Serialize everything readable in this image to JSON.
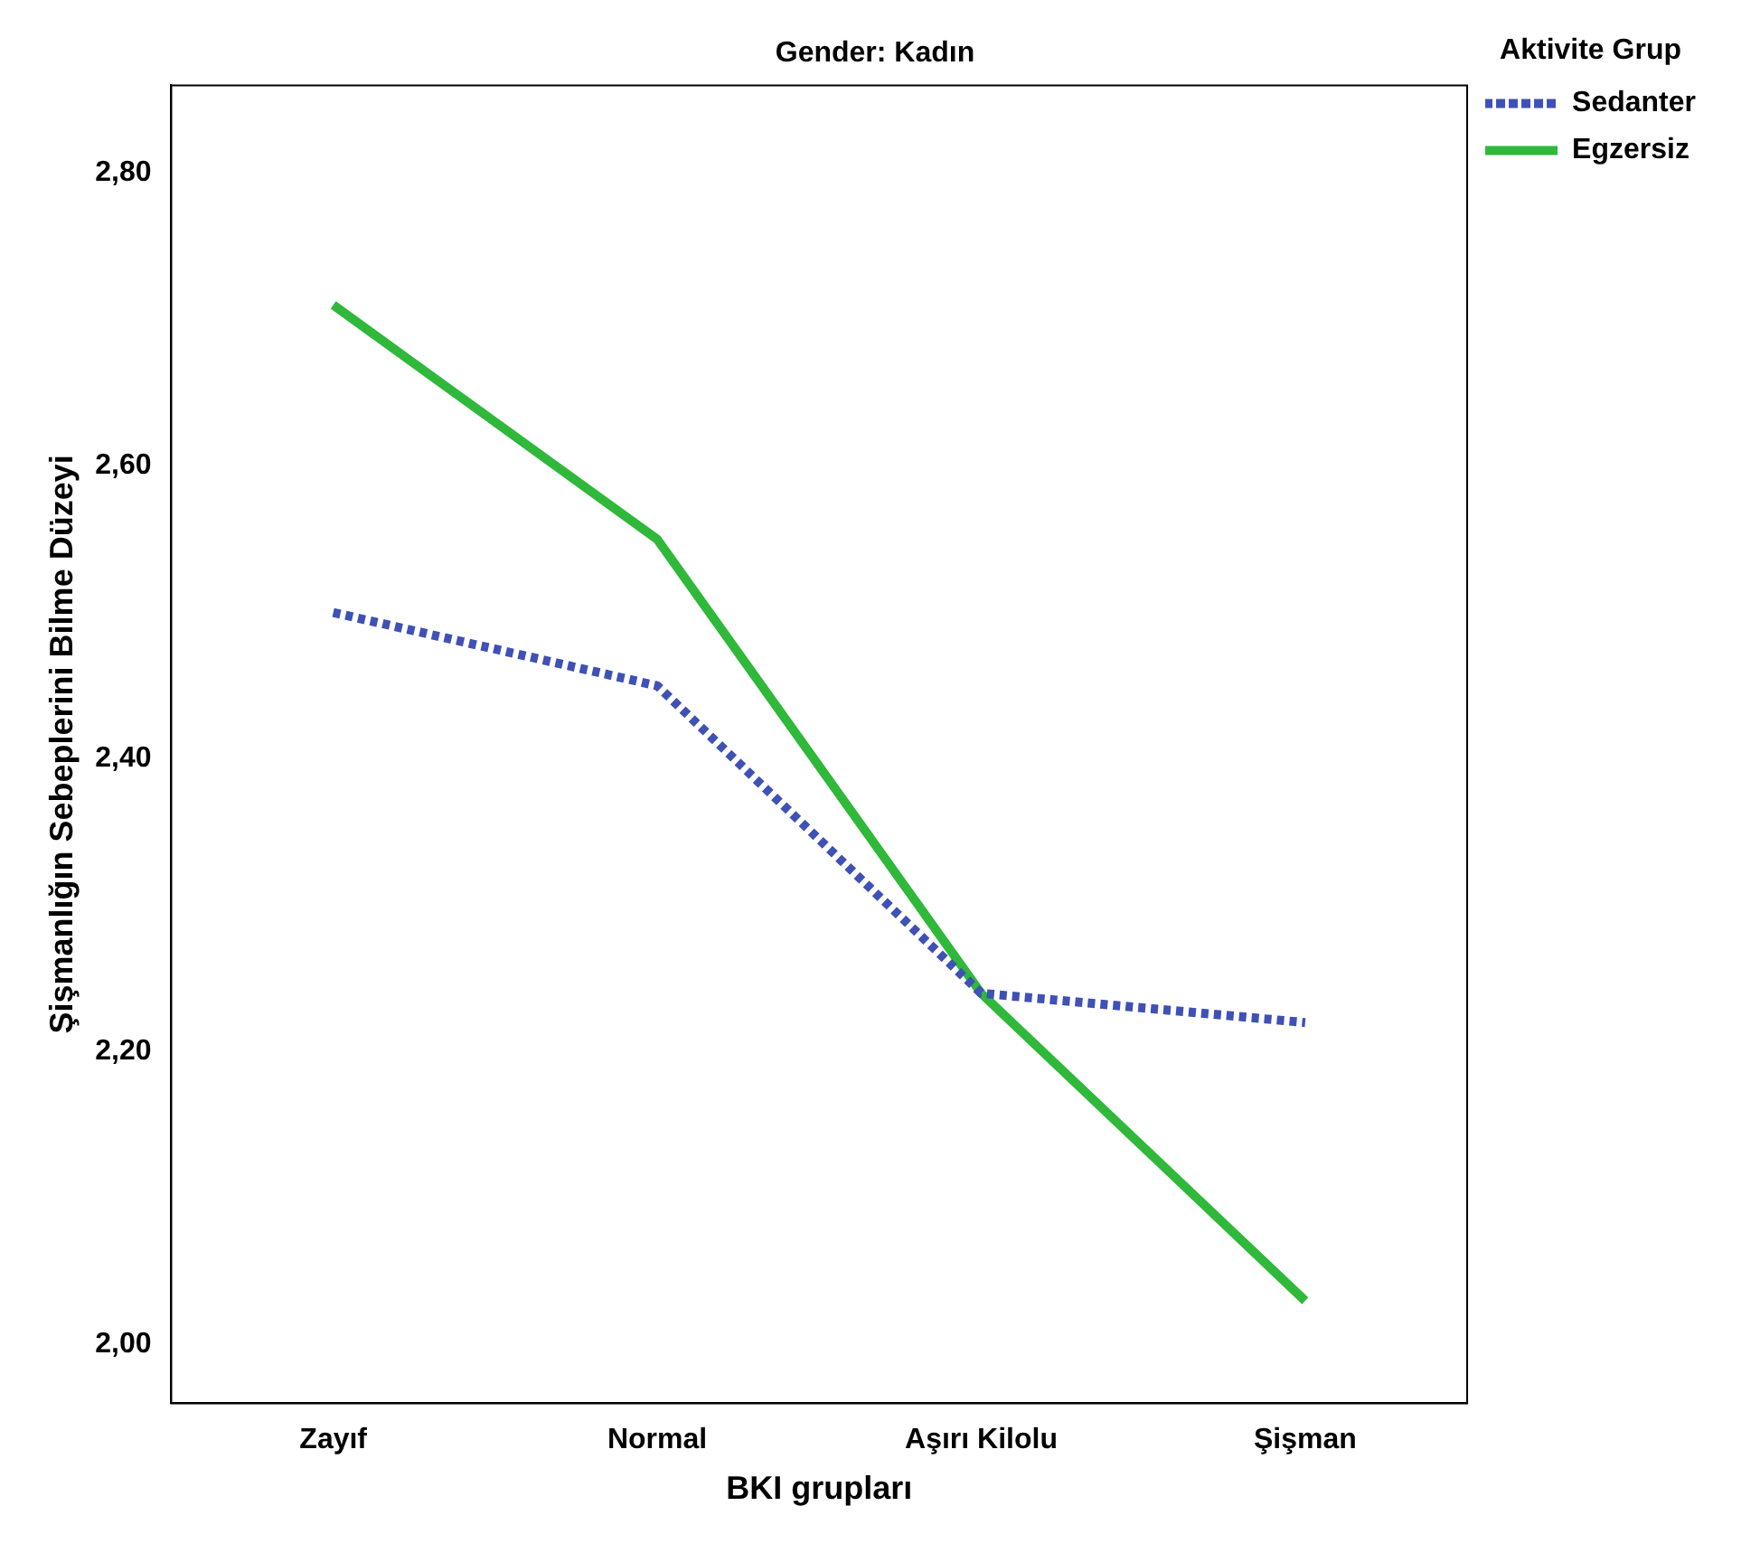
{
  "chart_data": {
    "type": "line",
    "title": "Gender: Kadın",
    "xlabel": "BKI grupları",
    "ylabel": "Şişmanlığın Sebeplerini Bilme Düzeyi",
    "legend_title": "Aktivite Grup",
    "legend": "right",
    "grid": false,
    "marker": "none",
    "categories": [
      "Zayıf",
      "Normal",
      "Aşırı Kilolu",
      "Şişman"
    ],
    "ylim": [
      1.96,
      2.86
    ],
    "yticks": [
      {
        "value": 2.0,
        "label": "2,00"
      },
      {
        "value": 2.2,
        "label": "2,20"
      },
      {
        "value": 2.4,
        "label": "2,40"
      },
      {
        "value": 2.6,
        "label": "2,60"
      },
      {
        "value": 2.8,
        "label": "2,80"
      }
    ],
    "series": [
      {
        "name": "Sedanter",
        "color": "#3f51b5",
        "line_style": "dotted",
        "values": [
          2.5,
          2.45,
          2.24,
          2.22
        ]
      },
      {
        "name": "Egzersiz",
        "color": "#2fb83a",
        "line_style": "solid",
        "values": [
          2.71,
          2.55,
          2.24,
          2.03
        ]
      }
    ]
  }
}
